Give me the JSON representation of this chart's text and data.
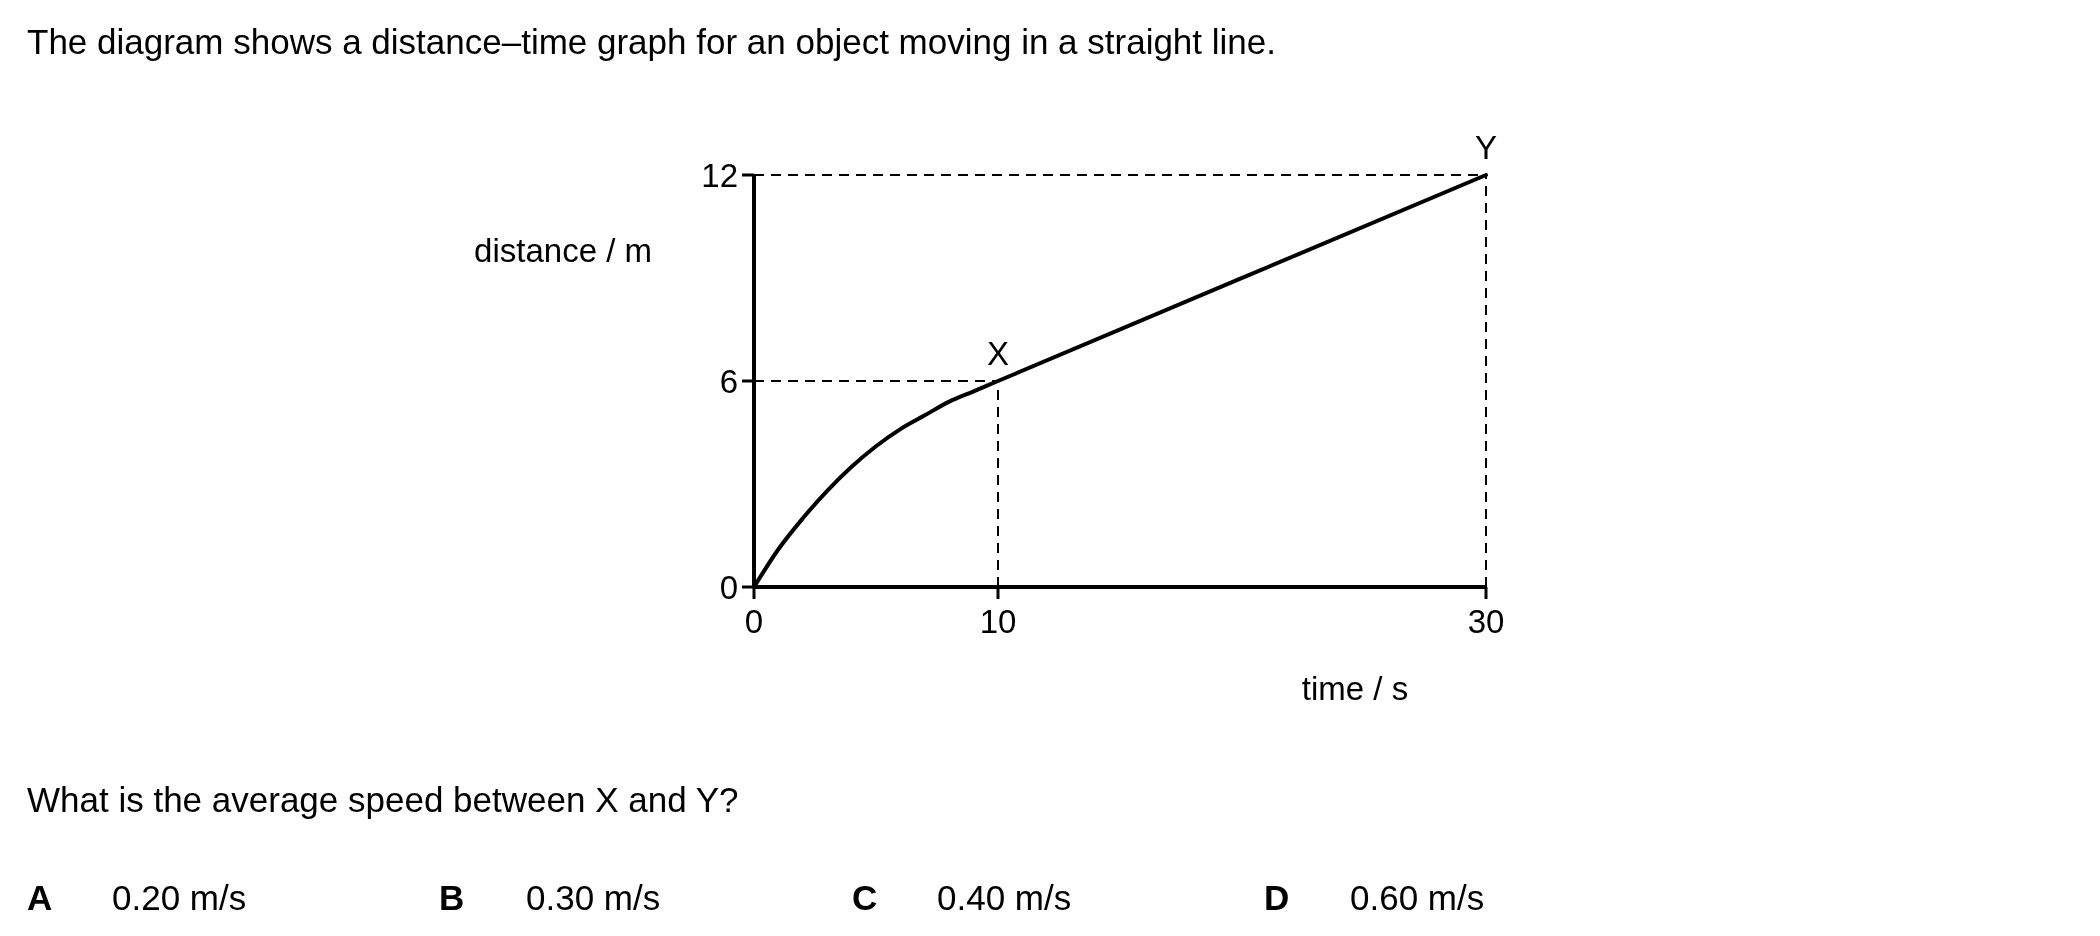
{
  "chart_data": {
    "type": "line",
    "title": "The diagram shows a distance–time graph for an object moving in a straight line.",
    "xlabel": "time / s",
    "ylabel": "distance / m",
    "x": [
      0,
      1,
      2,
      3,
      4,
      5,
      6,
      7,
      8,
      9,
      10,
      30
    ],
    "series": [
      {
        "color": "#000000",
        "values": [
          0,
          1.1,
          2.0,
          2.8,
          3.5,
          4.1,
          4.6,
          5.0,
          5.4,
          5.7,
          6,
          12
        ]
      }
    ],
    "xlim": [
      0,
      30
    ],
    "xticks": [
      0,
      10,
      30
    ],
    "ylim": [
      0,
      12
    ],
    "yticks": [
      0,
      6,
      12
    ],
    "marker": "none",
    "line_style": "solid",
    "ref_lines": [
      {
        "axis": "y",
        "value": 12,
        "line_style": "dashed"
      },
      {
        "axis": "y",
        "value": 6,
        "line_style": "dashed"
      },
      {
        "axis": "x",
        "value": 10,
        "line_style": "dashed"
      },
      {
        "axis": "x",
        "value": 30,
        "line_style": "dashed"
      }
    ],
    "annotations": [
      {
        "text": "X",
        "x": 10,
        "y": 6
      },
      {
        "text": "Y",
        "x": 30,
        "y": 12
      },
      "What is the average speed between X and Y?",
      "A 0.20 m/s",
      "B 0.30 m/s",
      "C 0.40 m/s",
      "D 0.60 m/s"
    ]
  }
}
